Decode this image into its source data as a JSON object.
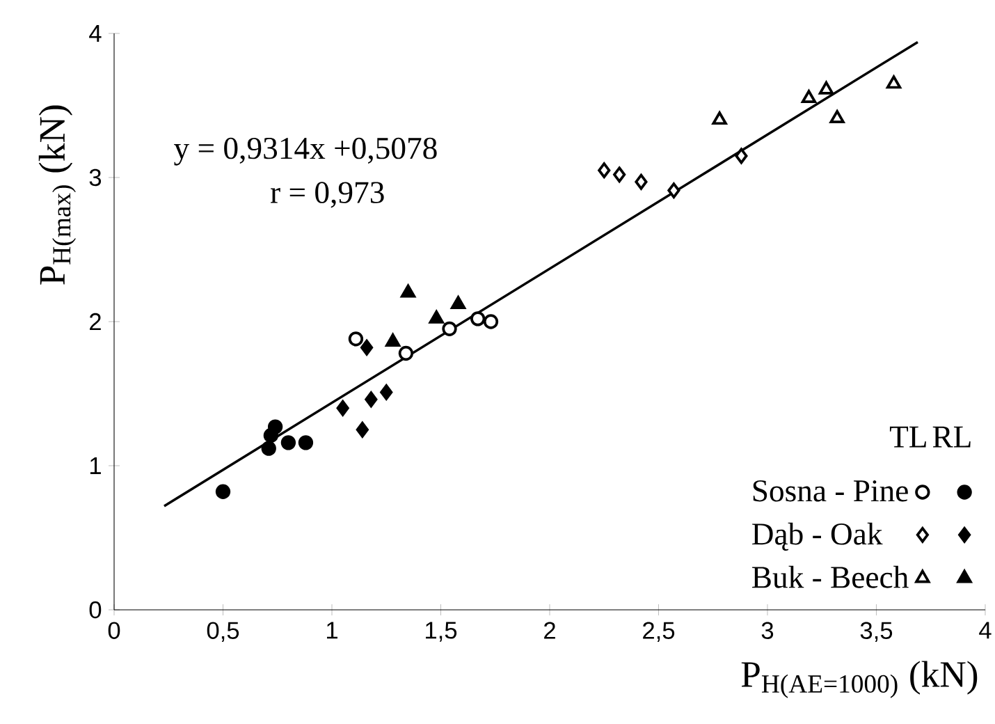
{
  "chart_data": {
    "type": "scatter",
    "xlabel": "P$_{H(AE=1000)}$ (kN)",
    "ylabel": "P$_{H(max)}$ (kN)",
    "xlim": [
      0,
      4
    ],
    "ylim": [
      0,
      4
    ],
    "xticks": [
      0,
      {
        "value": 0.5,
        "label": "0,5"
      },
      1,
      {
        "value": 1.5,
        "label": "1,5"
      },
      2,
      {
        "value": 2.5,
        "label": "2,5"
      },
      3,
      {
        "value": 3.5,
        "label": "3,5"
      },
      4
    ],
    "yticks": [
      0,
      1,
      2,
      3,
      4
    ],
    "grid": false,
    "legend": "bottom right",
    "annotations": [
      "y = 0,9314x +0,5078",
      "r = 0,973",
      "TL",
      "RL"
    ],
    "series": [
      {
        "name": "Sosna - Pine",
        "marker": "circle",
        "color": "#ffffff",
        "x": [
          1.11,
          1.34,
          1.54,
          1.67,
          1.73
        ],
        "values": [
          1.88,
          1.78,
          1.95,
          2.02,
          2.0
        ]
      },
      {
        "marker": "circle",
        "color": "#000000",
        "x": [
          0.5,
          0.74,
          0.71,
          0.8,
          0.88,
          0.72
        ],
        "values": [
          0.82,
          1.27,
          1.12,
          1.16,
          1.16,
          1.21
        ]
      },
      {
        "name": "Dąb - Oak",
        "marker": "diamond",
        "color": "#ffffff",
        "x": [
          2.25,
          2.32,
          2.42,
          2.57,
          2.88
        ],
        "values": [
          3.05,
          3.02,
          2.97,
          2.91,
          3.15
        ]
      },
      {
        "marker": "diamond",
        "color": "#000000",
        "x": [
          1.16,
          1.05,
          1.18,
          1.25,
          1.14
        ],
        "values": [
          1.82,
          1.4,
          1.46,
          1.51,
          1.25
        ]
      },
      {
        "name": "Buk -  Beech",
        "marker": "triangle",
        "color": "#ffffff",
        "x": [
          2.78,
          3.19,
          3.27,
          3.32,
          3.58
        ],
        "values": [
          3.4,
          3.55,
          3.61,
          3.41,
          3.65
        ]
      },
      {
        "marker": "triangle",
        "color": "#000000",
        "x": [
          1.35,
          1.28,
          1.48,
          1.58
        ],
        "values": [
          2.2,
          1.86,
          2.02,
          2.12
        ]
      },
      {
        "type": "line",
        "marker": "none",
        "line_style": "solid",
        "color": "#000000",
        "x": [
          0.23,
          3.69
        ],
        "values": [
          0.72,
          3.94
        ]
      }
    ]
  }
}
